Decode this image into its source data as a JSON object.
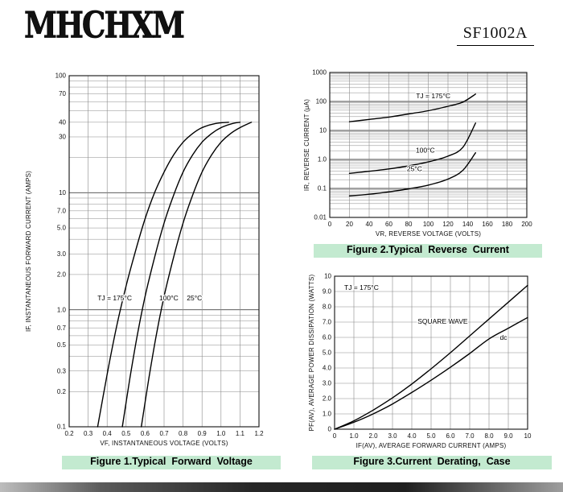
{
  "page": {
    "brand": "MHCHXM",
    "part_number": "SF1002A",
    "caption_highlight_color": "#c3ead0",
    "curve_color": "#000000",
    "grid_color": "#8a8a8a"
  },
  "figures": {
    "fig1": {
      "caption": "Figure 1.Typical  Forward  Voltage"
    },
    "fig2": {
      "caption": "Figure 2.Typical  Reverse  Current"
    },
    "fig3": {
      "caption": "Figure 3.Current  Derating,  Case"
    }
  },
  "chart_data": [
    {
      "id": "fig1",
      "type": "line",
      "title": "Typical Forward Voltage",
      "grid": true,
      "x_axis": {
        "label": "VF, INSTANTANEOUS VOLTAGE (VOLTS)",
        "scale": "linear",
        "min": 0.2,
        "max": 1.2,
        "ticks": [
          0.2,
          0.3,
          0.4,
          0.5,
          0.6,
          0.7,
          0.8,
          0.9,
          1.0,
          1.1,
          1.2
        ],
        "tick_labels": [
          "0.2",
          "0.3",
          "0.4",
          "0.5",
          "0.6",
          "0.7",
          "0.8",
          "0.9",
          "1.0",
          "1.1",
          "1.2"
        ]
      },
      "y_axis": {
        "label": "IF, INSTANTANEOUS FORWARD CURRENT (AMPS)",
        "scale": "log",
        "min": 0.1,
        "max": 100,
        "ticks": [
          100,
          70,
          40,
          30,
          10,
          7.0,
          5.0,
          3.0,
          2.0,
          1.0,
          0.7,
          0.5,
          0.3,
          0.2,
          0.1
        ],
        "tick_labels": [
          "100",
          "70",
          "40",
          "30",
          "10",
          "7.0",
          "5.0",
          "3.0",
          "2.0",
          "1.0",
          "0.7",
          "0.5",
          "0.3",
          "0.2",
          "0.1"
        ]
      },
      "series": [
        {
          "name": "TJ = 175°C",
          "points": [
            [
              0.35,
              0.1
            ],
            [
              0.4,
              0.28
            ],
            [
              0.45,
              0.72
            ],
            [
              0.5,
              1.6
            ],
            [
              0.55,
              3.2
            ],
            [
              0.6,
              6.0
            ],
            [
              0.65,
              10
            ],
            [
              0.7,
              15
            ],
            [
              0.75,
              21
            ],
            [
              0.8,
              27
            ],
            [
              0.85,
              32
            ],
            [
              0.9,
              36
            ],
            [
              0.97,
              39
            ],
            [
              1.04,
              40
            ]
          ]
        },
        {
          "name": "100°C",
          "points": [
            [
              0.48,
              0.1
            ],
            [
              0.52,
              0.26
            ],
            [
              0.56,
              0.62
            ],
            [
              0.6,
              1.3
            ],
            [
              0.65,
              2.8
            ],
            [
              0.7,
              5.5
            ],
            [
              0.75,
              9.5
            ],
            [
              0.8,
              15
            ],
            [
              0.85,
              21
            ],
            [
              0.9,
              27
            ],
            [
              0.95,
              32
            ],
            [
              1.0,
              36
            ],
            [
              1.06,
              39
            ],
            [
              1.1,
              40
            ]
          ]
        },
        {
          "name": "25°C",
          "points": [
            [
              0.58,
              0.1
            ],
            [
              0.62,
              0.26
            ],
            [
              0.66,
              0.62
            ],
            [
              0.7,
              1.3
            ],
            [
              0.75,
              2.8
            ],
            [
              0.8,
              5.5
            ],
            [
              0.85,
              9.5
            ],
            [
              0.9,
              15
            ],
            [
              0.95,
              21
            ],
            [
              1.0,
              27
            ],
            [
              1.05,
              32
            ],
            [
              1.1,
              36
            ],
            [
              1.16,
              40
            ]
          ]
        }
      ],
      "annotations": [
        {
          "x": 0.44,
          "y": 1.2,
          "text": "TJ = 175°C"
        },
        {
          "x": 0.725,
          "y": 1.2,
          "text": "100°C"
        },
        {
          "x": 0.86,
          "y": 1.2,
          "text": "25°C"
        }
      ],
      "caption": "Figure 1.Typical  Forward  Voltage"
    },
    {
      "id": "fig2",
      "type": "line",
      "title": "Typical Reverse Current",
      "grid": true,
      "x_axis": {
        "label": "VR, REVERSE VOLTAGE (VOLTS)",
        "scale": "linear",
        "min": 0,
        "max": 200,
        "ticks": [
          0,
          20,
          40,
          60,
          80,
          100,
          120,
          140,
          160,
          180,
          200
        ],
        "tick_labels": [
          "0",
          "20",
          "40",
          "60",
          "80",
          "100",
          "120",
          "140",
          "160",
          "180",
          "200"
        ]
      },
      "y_axis": {
        "label": "IR, REVERSE CURRENT (μA)",
        "scale": "log",
        "min": 0.01,
        "max": 1000,
        "ticks": [
          1000,
          100,
          10,
          1.0,
          0.1,
          0.01
        ],
        "tick_labels": [
          "1000",
          "100",
          "10",
          "1.0",
          "0.1",
          "0.01"
        ]
      },
      "series": [
        {
          "name": "TJ = 175°C",
          "points": [
            [
              20,
              20
            ],
            [
              40,
              24
            ],
            [
              60,
              29
            ],
            [
              80,
              37
            ],
            [
              100,
              48
            ],
            [
              120,
              68
            ],
            [
              135,
              95
            ],
            [
              148,
              180
            ]
          ]
        },
        {
          "name": "100°C",
          "points": [
            [
              20,
              0.33
            ],
            [
              40,
              0.39
            ],
            [
              60,
              0.47
            ],
            [
              80,
              0.6
            ],
            [
              100,
              0.82
            ],
            [
              120,
              1.3
            ],
            [
              135,
              2.6
            ],
            [
              148,
              18
            ]
          ]
        },
        {
          "name": "25°C",
          "points": [
            [
              20,
              0.055
            ],
            [
              40,
              0.063
            ],
            [
              60,
              0.076
            ],
            [
              80,
              0.097
            ],
            [
              100,
              0.13
            ],
            [
              120,
              0.21
            ],
            [
              135,
              0.42
            ],
            [
              148,
              1.7
            ]
          ]
        }
      ],
      "annotations": [
        {
          "x": 105,
          "y": 130,
          "text": "TJ = 175°C"
        },
        {
          "x": 97,
          "y": 1.7,
          "text": "100°C"
        },
        {
          "x": 86,
          "y": 0.4,
          "text": "25°C"
        }
      ],
      "caption": "Figure 2.Typical  Reverse  Current"
    },
    {
      "id": "fig3",
      "type": "line",
      "title": "Current Derating, Case",
      "grid": true,
      "x_axis": {
        "label": "IF(AV), AVERAGE FORWARD CURRENT (AMPS)",
        "scale": "linear",
        "min": 0,
        "max": 10,
        "ticks": [
          0,
          1,
          2,
          3,
          4,
          5,
          6,
          7,
          8,
          9,
          10
        ],
        "tick_labels": [
          "0",
          "1.0",
          "2.0",
          "3.0",
          "4.0",
          "5.0",
          "6.0",
          "7.0",
          "8.0",
          "9.0",
          "10"
        ]
      },
      "y_axis": {
        "label": "PF(AV), AVERAGE POWER DISSIPATION (WATTS)",
        "scale": "linear",
        "min": 0,
        "max": 10,
        "ticks": [
          10,
          9,
          8,
          7,
          6,
          5,
          4,
          3,
          2,
          1,
          0
        ],
        "tick_labels": [
          "10",
          "9.0",
          "8.0",
          "7.0",
          "6.0",
          "5.0",
          "4.0",
          "3.0",
          "2.0",
          "1.0",
          "0"
        ]
      },
      "series": [
        {
          "name": "SQUARE WAVE",
          "points": [
            [
              0,
              0
            ],
            [
              1,
              0.55
            ],
            [
              2,
              1.25
            ],
            [
              3,
              2.05
            ],
            [
              4,
              2.95
            ],
            [
              5,
              3.95
            ],
            [
              6,
              5.0
            ],
            [
              7,
              6.1
            ],
            [
              8,
              7.2
            ],
            [
              9,
              8.3
            ],
            [
              10,
              9.4
            ]
          ]
        },
        {
          "name": "dc",
          "points": [
            [
              0,
              0
            ],
            [
              1,
              0.45
            ],
            [
              2,
              1.0
            ],
            [
              3,
              1.65
            ],
            [
              4,
              2.4
            ],
            [
              5,
              3.2
            ],
            [
              6,
              4.05
            ],
            [
              7,
              4.95
            ],
            [
              8,
              5.9
            ],
            [
              9,
              6.6
            ],
            [
              10,
              7.3
            ]
          ]
        }
      ],
      "annotations": [
        {
          "x": 0.5,
          "y": 9.1,
          "text": "TJ = 175°C",
          "anchor": "start"
        },
        {
          "x": 5.6,
          "y": 6.9,
          "text": "SQUARE WAVE"
        },
        {
          "x": 8.75,
          "y": 5.85,
          "text": "dc"
        }
      ],
      "caption": "Figure 3.Current  Derating,  Case"
    }
  ]
}
